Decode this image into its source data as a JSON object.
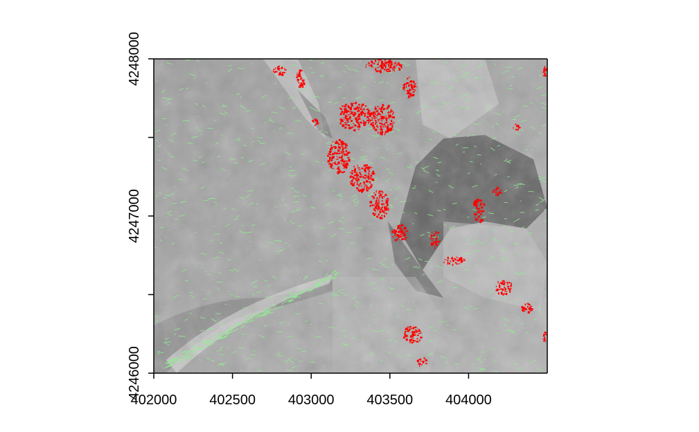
{
  "chart_data": {
    "type": "raster-map",
    "title": "",
    "xlabel": "",
    "ylabel": "",
    "xlim": [
      402000,
      404500
    ],
    "ylim": [
      4246000,
      4248000
    ],
    "x_ticks": [
      {
        "value": 402000,
        "label": "402000"
      },
      {
        "value": 402500,
        "label": "402500"
      },
      {
        "value": 403000,
        "label": "403000"
      },
      {
        "value": 403500,
        "label": "403500"
      },
      {
        "value": 404000,
        "label": "404000"
      }
    ],
    "y_ticks": [
      {
        "value": 4246000,
        "label": "4246000"
      },
      {
        "value": 4246500,
        "label": ""
      },
      {
        "value": 4247000,
        "label": "4247000"
      },
      {
        "value": 4247500,
        "label": ""
      },
      {
        "value": 4248000,
        "label": "4248000"
      }
    ],
    "layers": [
      {
        "name": "hillshade",
        "style": "grayscale shaded relief",
        "color": "#a9a9a9"
      },
      {
        "name": "red-cells",
        "color": "#ff0000"
      },
      {
        "name": "green-lines",
        "color": "#90ee90"
      }
    ],
    "red_patches": [
      {
        "x": 402800,
        "y": 4247930,
        "rx": 45,
        "ry": 30
      },
      {
        "x": 402930,
        "y": 4247880,
        "rx": 30,
        "ry": 60
      },
      {
        "x": 403460,
        "y": 4247960,
        "rx": 120,
        "ry": 40
      },
      {
        "x": 403620,
        "y": 4247820,
        "rx": 40,
        "ry": 70
      },
      {
        "x": 403270,
        "y": 4247640,
        "rx": 110,
        "ry": 90
      },
      {
        "x": 403450,
        "y": 4247620,
        "rx": 80,
        "ry": 100
      },
      {
        "x": 403170,
        "y": 4247380,
        "rx": 70,
        "ry": 110
      },
      {
        "x": 403320,
        "y": 4247250,
        "rx": 80,
        "ry": 90
      },
      {
        "x": 403430,
        "y": 4247080,
        "rx": 60,
        "ry": 90
      },
      {
        "x": 403560,
        "y": 4246900,
        "rx": 50,
        "ry": 60
      },
      {
        "x": 403780,
        "y": 4246860,
        "rx": 30,
        "ry": 60
      },
      {
        "x": 404060,
        "y": 4247040,
        "rx": 40,
        "ry": 80
      },
      {
        "x": 404180,
        "y": 4247160,
        "rx": 30,
        "ry": 30
      },
      {
        "x": 403900,
        "y": 4246720,
        "rx": 70,
        "ry": 30
      },
      {
        "x": 404220,
        "y": 4246550,
        "rx": 60,
        "ry": 45
      },
      {
        "x": 404370,
        "y": 4246420,
        "rx": 40,
        "ry": 30
      },
      {
        "x": 403640,
        "y": 4246250,
        "rx": 60,
        "ry": 60
      },
      {
        "x": 403700,
        "y": 4246080,
        "rx": 30,
        "ry": 30
      },
      {
        "x": 404480,
        "y": 4246230,
        "rx": 10,
        "ry": 40
      },
      {
        "x": 404480,
        "y": 4247920,
        "rx": 10,
        "ry": 40
      },
      {
        "x": 404300,
        "y": 4247570,
        "rx": 20,
        "ry": 20
      },
      {
        "x": 403020,
        "y": 4247600,
        "rx": 20,
        "ry": 25
      }
    ]
  }
}
